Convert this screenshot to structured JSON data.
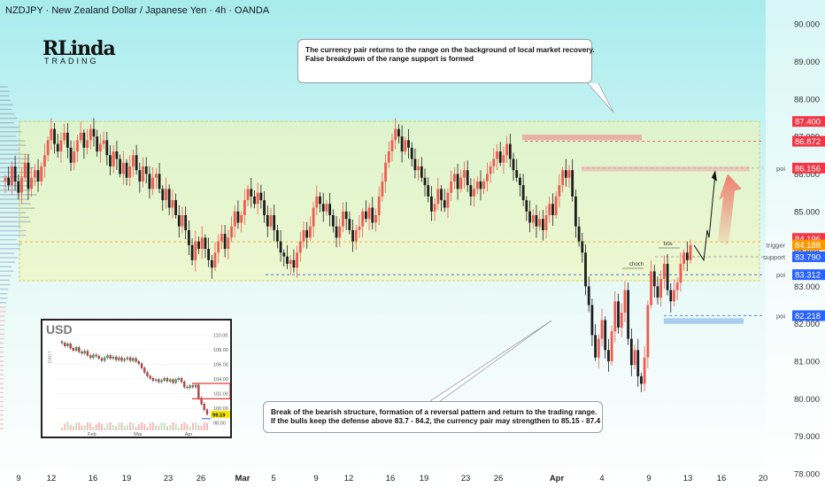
{
  "header": {
    "title": "NZDJPY · New Zealand Dollar / Japanese Yen · 4h · OANDA"
  },
  "logo": {
    "main": "RLinda",
    "sub": "TRADING"
  },
  "callouts": {
    "top": {
      "line1": "The currency pair returns to the range on the background of local market recovery.",
      "line2": "False breakdown of the range support is formed"
    },
    "bottom": {
      "line1": "Break of the bearish structure, formation of a reversal pattern and return to the trading range.",
      "line2": "If the bulls keep the defense above 83.7 - 84.2, the currency pair may strengthen to 85.15 - 87.4"
    }
  },
  "colors": {
    "up": "#f05a4f",
    "down": "#1e1e1e",
    "range_fill": "#f2f5b0",
    "red_badge": "#f23645",
    "orange_badge": "#ff9800",
    "blue_badge": "#2962ff",
    "bg_top": "#a8ecee",
    "bg_bottom": "#ffffff"
  },
  "chart_data": {
    "type": "candlestick",
    "symbol": "NZDJPY",
    "timeframe": "4h",
    "ylim": [
      78.0,
      90.5
    ],
    "y_ticks": [
      "90.000",
      "89.000",
      "88.000",
      "87.000",
      "86.000",
      "85.000",
      "84.000",
      "83.000",
      "82.000",
      "81.000",
      "80.000",
      "79.000",
      "78.000"
    ],
    "x_ticks": [
      "9",
      "12",
      "16",
      "19",
      "23",
      "26",
      "Mar",
      "5",
      "9",
      "12",
      "16",
      "19",
      "23",
      "26",
      "Apr",
      "4",
      "9",
      "13",
      "16",
      "20"
    ],
    "price_labels": [
      {
        "value": "87.400",
        "color": "red"
      },
      {
        "value": "86.872",
        "color": "red"
      },
      {
        "value": "86.156",
        "color": "red",
        "tag": "poi"
      },
      {
        "value": "84.196",
        "color": "red"
      },
      {
        "value": "84.188",
        "color": "orange",
        "tag": "trigger"
      },
      {
        "value": "83.790",
        "color": "blue",
        "tag": "support"
      },
      {
        "value": "83.312",
        "color": "blue",
        "tag": "poi"
      },
      {
        "value": "82.218",
        "color": "blue",
        "tag": "poi"
      }
    ],
    "obscured_label": "84.000",
    "range": {
      "top": 87.4,
      "bottom": 83.15
    },
    "annotations": [
      "choch",
      "bos"
    ],
    "close": [
      85.9,
      85.7,
      86.2,
      85.8,
      85.5,
      85.9,
      86.3,
      85.6,
      85.9,
      86.1,
      85.8,
      86.2,
      86.5,
      86.9,
      87.2,
      86.8,
      86.6,
      86.9,
      87.1,
      86.7,
      86.3,
      86.6,
      86.9,
      87.1,
      86.7,
      86.9,
      87.2,
      87.0,
      86.6,
      86.8,
      86.9,
      86.5,
      86.2,
      86.6,
      86.4,
      86.0,
      86.3,
      85.9,
      86.2,
      86.5,
      86.1,
      85.8,
      86.2,
      86.0,
      85.6,
      85.9,
      86.0,
      85.6,
      85.3,
      85.6,
      85.1,
      85.3,
      84.9,
      84.6,
      84.9,
      84.5,
      84.1,
      83.7,
      84.2,
      84.0,
      84.3,
      84.0,
      83.7,
      83.5,
      83.9,
      84.2,
      84.4,
      84.0,
      84.3,
      84.6,
      85.0,
      84.7,
      84.9,
      85.3,
      85.6,
      85.4,
      85.2,
      85.5,
      85.3,
      84.9,
      84.6,
      84.9,
      84.5,
      84.2,
      83.9,
      83.8,
      83.6,
      83.7,
      83.5,
      83.9,
      84.2,
      84.5,
      84.3,
      84.6,
      85.1,
      85.4,
      85.2,
      85.0,
      85.2,
      84.9,
      84.6,
      84.3,
      84.6,
      85.0,
      84.8,
      84.5,
      84.2,
      84.5,
      84.6,
      85.0,
      84.8,
      85.1,
      84.7,
      84.9,
      85.4,
      85.8,
      86.3,
      86.6,
      86.9,
      87.2,
      87.0,
      86.6,
      86.9,
      86.7,
      86.4,
      86.1,
      86.2,
      85.9,
      85.7,
      85.4,
      85.0,
      85.2,
      85.6,
      85.3,
      85.1,
      85.5,
      85.8,
      86.0,
      85.6,
      85.9,
      86.1,
      85.7,
      85.4,
      85.6,
      85.8,
      85.6,
      85.8,
      86.0,
      86.2,
      86.4,
      86.6,
      86.3,
      86.5,
      86.8,
      86.4,
      86.1,
      85.9,
      85.7,
      85.3,
      85.0,
      84.7,
      84.9,
      84.6,
      84.8,
      84.5,
      84.9,
      85.2,
      84.9,
      85.4,
      85.7,
      86.1,
      85.9,
      86.1,
      85.4,
      84.6,
      84.2,
      83.9,
      83.0,
      82.5,
      81.7,
      81.1,
      81.6,
      82.1,
      81.3,
      81.0,
      81.8,
      82.6,
      81.9,
      82.3,
      82.9,
      81.6,
      80.9,
      81.3,
      80.6,
      80.4,
      81.1,
      82.5,
      83.4,
      83.0,
      82.7,
      83.2,
      83.6,
      82.9,
      82.6,
      82.9,
      83.1,
      83.6,
      83.9,
      83.7,
      84.1
    ]
  },
  "inset": {
    "title": "USD",
    "ylabel": "DAILY",
    "y_ticks": [
      "110.00",
      "108.00",
      "106.00",
      "104.00",
      "102.00",
      "100.00",
      "98.00"
    ],
    "x_ticks": [
      "Feb",
      "Mar",
      "Apr"
    ],
    "last_value": "99.19",
    "ylim": [
      97.0,
      111.0
    ],
    "close": [
      108.9,
      108.5,
      108.8,
      108.2,
      107.9,
      108.3,
      107.7,
      107.5,
      107.8,
      107.2,
      106.9,
      107.3,
      107.1,
      106.8,
      106.5,
      106.9,
      107.2,
      106.8,
      107.0,
      106.6,
      106.9,
      106.5,
      106.7,
      106.9,
      106.5,
      106.8,
      106.4,
      106.1,
      105.5,
      104.9,
      104.4,
      104.1,
      103.8,
      103.9,
      103.6,
      103.8,
      104.1,
      103.7,
      103.9,
      103.5,
      103.9,
      104.1,
      103.6,
      102.9,
      102.8,
      103.1,
      102.9,
      103.2,
      101.4,
      100.6,
      99.8,
      99.2
    ]
  }
}
